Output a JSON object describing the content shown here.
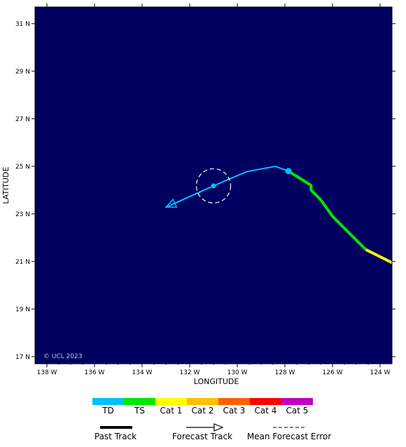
{
  "chart_data": {
    "type": "map",
    "xlabel": "LONGITUDE",
    "ylabel": "LATITUDE",
    "copyright": "© UCL 2023",
    "xlim": [
      -138.5,
      -123.5
    ],
    "ylim": [
      16.7,
      31.7
    ],
    "lon_ticks": [
      {
        "value": -138,
        "label": "138 W"
      },
      {
        "value": -136,
        "label": "136 W"
      },
      {
        "value": -134,
        "label": "134 W"
      },
      {
        "value": -132,
        "label": "132 W"
      },
      {
        "value": -130,
        "label": "130 W"
      },
      {
        "value": -128,
        "label": "128 W"
      },
      {
        "value": -126,
        "label": "126 W"
      },
      {
        "value": -124,
        "label": "124 W"
      }
    ],
    "lat_ticks": [
      {
        "value": 17,
        "label": "17 N"
      },
      {
        "value": 19,
        "label": "19 N"
      },
      {
        "value": 21,
        "label": "21 N"
      },
      {
        "value": 23,
        "label": "23 N"
      },
      {
        "value": 25,
        "label": "25 N"
      },
      {
        "value": 27,
        "label": "27 N"
      },
      {
        "value": 29,
        "label": "29 N"
      },
      {
        "value": 31,
        "label": "31 N"
      }
    ],
    "past_track": [
      {
        "category": "Cat 1",
        "points": [
          [
            -123.5,
            20.95
          ],
          [
            -124.6,
            21.5
          ]
        ]
      },
      {
        "category": "TS",
        "points": [
          [
            -124.6,
            21.5
          ],
          [
            -126.0,
            22.9
          ],
          [
            -126.5,
            23.6
          ],
          [
            -126.9,
            24.0
          ],
          [
            -126.9,
            24.2
          ],
          [
            -127.85,
            24.8
          ]
        ]
      }
    ],
    "forecast_track": {
      "category": "TD",
      "points": [
        [
          -127.85,
          24.8
        ],
        [
          -128.4,
          25.0
        ],
        [
          -129.6,
          24.78
        ],
        [
          -131.0,
          24.18
        ],
        [
          -133.0,
          23.28
        ]
      ]
    },
    "current_position": {
      "lon": -127.85,
      "lat": 24.8,
      "category": "TD"
    },
    "forecast_points": [
      {
        "lon": -131.0,
        "lat": 24.18,
        "category": "TD"
      }
    ],
    "error_circles": [
      {
        "lon": -131.0,
        "lat": 24.18,
        "radius_deg": 0.72
      }
    ]
  },
  "legend": {
    "categories": [
      {
        "label": "TD",
        "color": "#00bfff"
      },
      {
        "label": "TS",
        "color": "#00e600"
      },
      {
        "label": "Cat 1",
        "color": "#ffff00"
      },
      {
        "label": "Cat 2",
        "color": "#ffc000"
      },
      {
        "label": "Cat 3",
        "color": "#ff6000"
      },
      {
        "label": "Cat 4",
        "color": "#ff0000"
      },
      {
        "label": "Cat 5",
        "color": "#c000c0"
      }
    ],
    "past_track_label": "Past Track",
    "forecast_track_label": "Forecast Track",
    "error_label": "Mean Forecast Error"
  },
  "colors": {
    "ocean": "#000060",
    "td": "#00bfff",
    "ts": "#00e600",
    "cat1": "#ffff00"
  }
}
